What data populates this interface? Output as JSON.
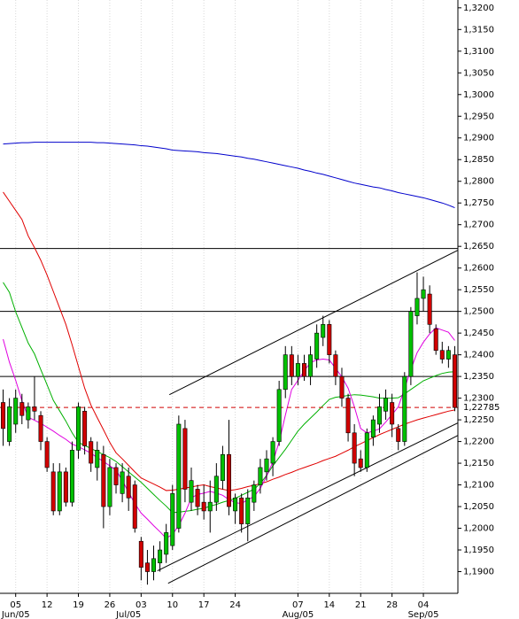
{
  "chart_data": {
    "type": "candlestick",
    "categories": [
      null,
      null,
      "05",
      null,
      null,
      null,
      null,
      "12",
      null,
      null,
      null,
      null,
      "19",
      null,
      null,
      null,
      null,
      "26",
      null,
      null,
      null,
      null,
      "03",
      null,
      null,
      null,
      null,
      "10",
      null,
      null,
      null,
      null,
      "17",
      null,
      null,
      null,
      null,
      "24",
      null,
      null,
      null,
      null,
      null,
      null,
      null,
      null,
      null,
      "07",
      null,
      null,
      null,
      null,
      "14",
      null,
      null,
      null,
      null,
      "21",
      null,
      null,
      null,
      null,
      "28",
      null,
      null,
      null,
      null,
      "04",
      null,
      null,
      null,
      null,
      null
    ],
    "month_categories": [
      null,
      null,
      "Jun/05",
      null,
      null,
      null,
      null,
      null,
      null,
      null,
      null,
      null,
      null,
      null,
      null,
      null,
      null,
      null,
      null,
      null,
      "Jul/05",
      null,
      null,
      null,
      null,
      null,
      null,
      null,
      null,
      null,
      null,
      null,
      null,
      null,
      null,
      null,
      null,
      null,
      null,
      null,
      null,
      null,
      null,
      null,
      null,
      null,
      null,
      "Aug/05",
      null,
      null,
      null,
      null,
      null,
      null,
      null,
      null,
      null,
      null,
      null,
      null,
      null,
      null,
      null,
      null,
      null,
      null,
      null,
      "Sep/05",
      null,
      null,
      null,
      null,
      null
    ],
    "open": [
      1.229,
      1.22,
      1.224,
      1.229,
      1.225,
      1.228,
      1.226,
      1.22,
      1.213,
      1.204,
      1.213,
      1.206,
      1.218,
      1.227,
      1.22,
      1.214,
      1.217,
      1.205,
      1.214,
      1.208,
      1.212,
      1.21,
      1.197,
      1.192,
      1.19,
      1.192,
      1.194,
      1.196,
      1.2,
      1.223,
      1.206,
      1.209,
      1.206,
      1.204,
      1.206,
      1.211,
      1.217,
      1.204,
      1.207,
      1.201,
      1.206,
      1.21,
      1.213,
      1.215,
      1.22,
      1.232,
      1.24,
      1.235,
      1.238,
      1.235,
      1.239,
      1.244,
      1.247,
      1.24,
      1.235,
      1.23,
      1.222,
      1.216,
      1.214,
      1.221,
      1.224,
      1.227,
      1.229,
      1.223,
      1.22,
      1.235,
      1.249,
      1.253,
      1.254,
      1.246,
      1.241,
      1.239,
      1.24
    ],
    "high": [
      1.232,
      1.23,
      1.232,
      1.231,
      1.229,
      1.235,
      1.227,
      1.221,
      1.215,
      1.215,
      1.214,
      1.22,
      1.229,
      1.228,
      1.221,
      1.22,
      1.219,
      1.216,
      1.215,
      1.215,
      1.214,
      1.211,
      1.198,
      1.195,
      1.196,
      1.197,
      1.201,
      1.21,
      1.226,
      1.225,
      1.214,
      1.21,
      1.21,
      1.211,
      1.215,
      1.219,
      1.225,
      1.208,
      1.208,
      1.209,
      1.211,
      1.216,
      1.218,
      1.221,
      1.234,
      1.242,
      1.242,
      1.24,
      1.24,
      1.242,
      1.247,
      1.249,
      1.248,
      1.241,
      1.237,
      1.231,
      1.224,
      1.218,
      1.223,
      1.226,
      1.231,
      1.232,
      1.231,
      1.224,
      1.236,
      1.251,
      1.259,
      1.258,
      1.256,
      1.247,
      1.243,
      1.242,
      1.242
    ],
    "low": [
      1.219,
      1.219,
      1.222,
      1.224,
      1.223,
      1.225,
      1.218,
      1.213,
      1.203,
      1.203,
      1.205,
      1.205,
      1.216,
      1.217,
      1.213,
      1.211,
      1.2,
      1.203,
      1.208,
      1.206,
      1.204,
      1.199,
      1.188,
      1.187,
      1.188,
      1.19,
      1.192,
      1.195,
      1.199,
      1.206,
      1.204,
      1.203,
      1.202,
      1.199,
      1.204,
      1.209,
      1.203,
      1.201,
      1.199,
      1.197,
      1.204,
      1.208,
      1.211,
      1.212,
      1.219,
      1.23,
      1.233,
      1.233,
      1.234,
      1.233,
      1.237,
      1.242,
      1.238,
      1.233,
      1.228,
      1.22,
      1.212,
      1.213,
      1.213,
      1.219,
      1.222,
      1.225,
      1.221,
      1.218,
      1.219,
      1.233,
      1.247,
      1.25,
      1.245,
      1.24,
      1.238,
      1.237,
      1.227
    ],
    "close": [
      1.223,
      1.228,
      1.23,
      1.226,
      1.228,
      1.227,
      1.22,
      1.214,
      1.204,
      1.213,
      1.206,
      1.218,
      1.228,
      1.219,
      1.215,
      1.218,
      1.205,
      1.214,
      1.21,
      1.213,
      1.207,
      1.2,
      1.191,
      1.19,
      1.193,
      1.195,
      1.199,
      1.208,
      1.224,
      1.209,
      1.211,
      1.205,
      1.204,
      1.206,
      1.212,
      1.217,
      1.205,
      1.207,
      1.201,
      1.207,
      1.21,
      1.214,
      1.216,
      1.22,
      1.232,
      1.24,
      1.235,
      1.238,
      1.235,
      1.24,
      1.245,
      1.247,
      1.24,
      1.235,
      1.23,
      1.222,
      1.215,
      1.214,
      1.222,
      1.225,
      1.228,
      1.23,
      1.224,
      1.22,
      1.235,
      1.25,
      1.253,
      1.255,
      1.247,
      1.241,
      1.239,
      1.241,
      1.22785
    ],
    "up_color": "#00c000",
    "down_color": "#d00000",
    "series": [
      {
        "color": "#0000cc",
        "values": [
          1.2886,
          1.2887,
          1.2888,
          1.2889,
          1.2889,
          1.289,
          1.289,
          1.289,
          1.289,
          1.289,
          1.289,
          1.289,
          1.289,
          1.289,
          1.289,
          1.2889,
          1.2889,
          1.2888,
          1.2887,
          1.2886,
          1.2885,
          1.2884,
          1.2882,
          1.2881,
          1.2879,
          1.2877,
          1.2875,
          1.2872,
          1.2871,
          1.287,
          1.2869,
          1.2868,
          1.2866,
          1.2865,
          1.2864,
          1.2862,
          1.286,
          1.2858,
          1.2856,
          1.2853,
          1.2851,
          1.2848,
          1.2845,
          1.2842,
          1.2839,
          1.2836,
          1.2833,
          1.283,
          1.2826,
          1.2823,
          1.2819,
          1.2816,
          1.2812,
          1.2808,
          1.2804,
          1.28,
          1.2796,
          1.2793,
          1.279,
          1.2787,
          1.2785,
          1.2781,
          1.2778,
          1.2774,
          1.2771,
          1.2768,
          1.2765,
          1.2762,
          1.2758,
          1.2754,
          1.275,
          1.2745,
          1.2739
        ]
      },
      {
        "color": "#e00000",
        "values": [
          1.2775,
          1.2754,
          1.2733,
          1.2712,
          1.2674,
          1.2647,
          1.2618,
          1.2584,
          1.2546,
          1.2508,
          1.247,
          1.2423,
          1.2373,
          1.2323,
          1.2284,
          1.2255,
          1.2227,
          1.2198,
          1.2174,
          1.216,
          1.2145,
          1.213,
          1.2116,
          1.2109,
          1.2102,
          1.2095,
          1.2087,
          1.2088,
          1.209,
          1.2093,
          1.2095,
          1.2098,
          1.21,
          1.2096,
          1.2093,
          1.209,
          1.2087,
          1.2089,
          1.2092,
          1.2096,
          1.2099,
          1.2103,
          1.2107,
          1.2113,
          1.2118,
          1.2124,
          1.2129,
          1.2135,
          1.214,
          1.2145,
          1.215,
          1.2156,
          1.2161,
          1.2166,
          1.2173,
          1.218,
          1.2188,
          1.2195,
          1.2202,
          1.2209,
          1.2216,
          1.2222,
          1.2228,
          1.2234,
          1.224,
          1.2245,
          1.225,
          1.2254,
          1.2258,
          1.2262,
          1.2266,
          1.227,
          1.2273
        ]
      },
      {
        "color": "#00b000",
        "values": [
          1.2567,
          1.2544,
          1.2499,
          1.2463,
          1.2427,
          1.2402,
          1.2366,
          1.2331,
          1.2295,
          1.2271,
          1.2247,
          1.222,
          1.2198,
          1.2191,
          1.2184,
          1.2177,
          1.217,
          1.2163,
          1.2154,
          1.2142,
          1.213,
          1.2118,
          1.2106,
          1.2092,
          1.2078,
          1.2064,
          1.2051,
          1.2036,
          1.2037,
          1.2039,
          1.2041,
          1.2044,
          1.2046,
          1.2051,
          1.2055,
          1.206,
          1.2064,
          1.2069,
          1.2076,
          1.2083,
          1.209,
          1.2103,
          1.2122,
          1.2144,
          1.2163,
          1.2182,
          1.2203,
          1.2224,
          1.224,
          1.2254,
          1.2268,
          1.2283,
          1.2297,
          1.2302,
          1.2304,
          1.2306,
          1.2308,
          1.2307,
          1.2305,
          1.2303,
          1.23,
          1.23,
          1.23,
          1.2301,
          1.231,
          1.232,
          1.233,
          1.234,
          1.2346,
          1.2352,
          1.2357,
          1.236,
          1.2361
        ]
      },
      {
        "color": "#e000e0",
        "values": [
          1.2436,
          1.2383,
          1.2341,
          1.2294,
          1.2256,
          1.2249,
          1.2242,
          1.2233,
          1.2224,
          1.2214,
          1.2205,
          1.2194,
          1.2188,
          1.2181,
          1.2173,
          1.2163,
          1.2154,
          1.2144,
          1.2134,
          1.211,
          1.2083,
          1.2057,
          1.2035,
          1.2021,
          1.2006,
          1.1992,
          1.1977,
          1.1986,
          1.2006,
          1.2035,
          1.207,
          1.2078,
          1.2081,
          1.2085,
          1.2081,
          1.2076,
          1.2066,
          1.2059,
          1.2057,
          1.2066,
          1.2073,
          1.2092,
          1.212,
          1.2153,
          1.2199,
          1.2261,
          1.232,
          1.2341,
          1.2363,
          1.2382,
          1.2388,
          1.239,
          1.2388,
          1.2369,
          1.2349,
          1.2323,
          1.228,
          1.223,
          1.222,
          1.2224,
          1.2229,
          1.2245,
          1.2262,
          1.228,
          1.2322,
          1.2366,
          1.2405,
          1.2429,
          1.2448,
          1.2462,
          1.2457,
          1.2452,
          1.2433
        ]
      }
    ],
    "levels": [
      1.2645,
      1.25,
      1.235
    ],
    "trendlines": [
      {
        "x": [
          26.5,
          72.5
        ],
        "y": [
          1.2308,
          1.2641
        ]
      },
      {
        "x": [
          24.6,
          72.5
        ],
        "y": [
          1.1902,
          1.2243
        ]
      },
      {
        "x": [
          26.3,
          72.5
        ],
        "y": [
          1.1873,
          1.2214
        ]
      }
    ],
    "price_line": {
      "value": 1.22785,
      "label": "1,22785",
      "color": "#d00000"
    },
    "ylim": [
      1.185,
      1.3218
    ],
    "yticks": [
      {
        "value": 1.19,
        "label": "1,1900"
      },
      {
        "value": 1.195,
        "label": "1,1950"
      },
      {
        "value": 1.2,
        "label": "1,2000"
      },
      {
        "value": 1.205,
        "label": "1,2050"
      },
      {
        "value": 1.21,
        "label": "1,2100"
      },
      {
        "value": 1.215,
        "label": "1,2150"
      },
      {
        "value": 1.22,
        "label": "1,2200"
      },
      {
        "value": 1.225,
        "label": "1,2250"
      },
      {
        "value": 1.23,
        "label": "1,2300"
      },
      {
        "value": 1.235,
        "label": "1,2350"
      },
      {
        "value": 1.24,
        "label": "1,2400"
      },
      {
        "value": 1.245,
        "label": "1,2450"
      },
      {
        "value": 1.25,
        "label": "1,2500"
      },
      {
        "value": 1.255,
        "label": "1,2550"
      },
      {
        "value": 1.26,
        "label": "1,2600"
      },
      {
        "value": 1.265,
        "label": "1,2650"
      },
      {
        "value": 1.27,
        "label": "1,2700"
      },
      {
        "value": 1.275,
        "label": "1,2750"
      },
      {
        "value": 1.28,
        "label": "1,2800"
      },
      {
        "value": 1.285,
        "label": "1,2850"
      },
      {
        "value": 1.29,
        "label": "1,2900"
      },
      {
        "value": 1.295,
        "label": "1,2950"
      },
      {
        "value": 1.3,
        "label": "1,3000"
      },
      {
        "value": 1.305,
        "label": "1,3050"
      },
      {
        "value": 1.31,
        "label": "1,3100"
      },
      {
        "value": 1.315,
        "label": "1,3150"
      },
      {
        "value": 1.32,
        "label": "1,3200"
      }
    ],
    "grid": true
  }
}
